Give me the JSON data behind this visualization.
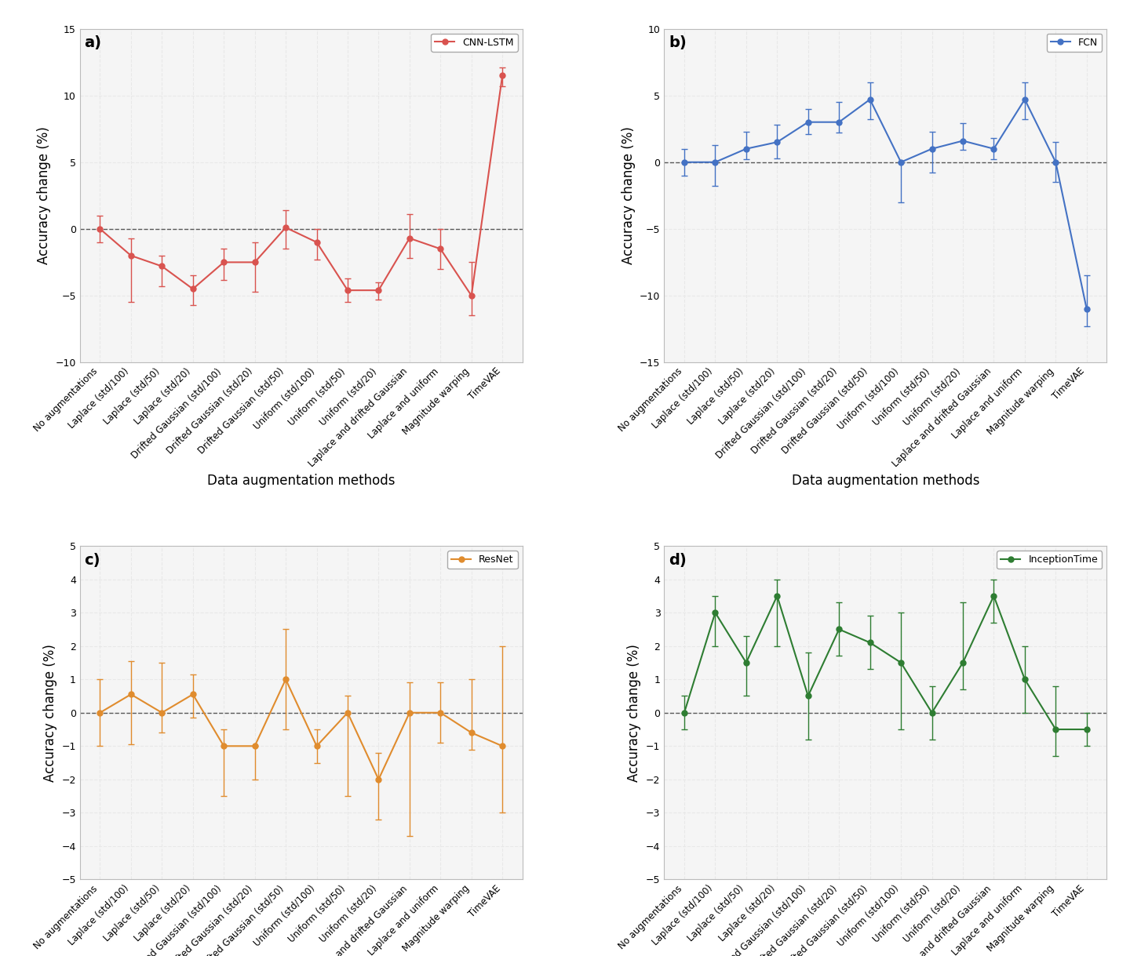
{
  "x_labels": [
    "No augmentations",
    "Laplace (std/100)",
    "Laplace (std/50)",
    "Laplace (std/20)",
    "Drifted Gaussian (std/100)",
    "Drifted Gaussian (std/20)",
    "Drifted Gaussian (std/50)",
    "Uniform (std/100)",
    "Uniform (std/50)",
    "Uniform (std/20)",
    "Laplace and drifted Gaussian",
    "Laplace and uniform",
    "Magnitude warping",
    "TimeVAE"
  ],
  "panels": [
    {
      "label": "a)",
      "model": "CNN-LSTM",
      "color": "#d9534f",
      "ylim": [
        -10,
        15
      ],
      "yticks": [
        -10,
        -5,
        0,
        5,
        10,
        15
      ],
      "values": [
        0.0,
        -2.0,
        -2.8,
        -4.5,
        -2.5,
        -2.5,
        0.1,
        -1.0,
        -4.6,
        -4.6,
        -0.7,
        -1.5,
        -5.0,
        11.5
      ],
      "yerr_low": [
        1.0,
        3.5,
        1.5,
        1.2,
        1.3,
        2.2,
        1.6,
        1.3,
        0.9,
        0.7,
        1.5,
        1.5,
        1.5,
        0.8
      ],
      "yerr_high": [
        1.0,
        1.3,
        0.8,
        1.0,
        1.0,
        1.5,
        1.3,
        1.0,
        0.9,
        0.6,
        1.8,
        1.5,
        2.5,
        0.6
      ]
    },
    {
      "label": "b)",
      "model": "FCN",
      "color": "#4472c4",
      "ylim": [
        -15,
        10
      ],
      "yticks": [
        -15,
        -10,
        -5,
        0,
        5,
        10
      ],
      "values": [
        0.0,
        0.0,
        1.0,
        1.5,
        3.0,
        3.0,
        4.7,
        0.0,
        1.0,
        1.6,
        1.0,
        4.7,
        0.0,
        -11.0
      ],
      "yerr_low": [
        1.0,
        1.8,
        0.8,
        1.2,
        0.9,
        0.8,
        1.5,
        3.0,
        1.8,
        0.7,
        0.8,
        1.5,
        1.5,
        1.3
      ],
      "yerr_high": [
        1.0,
        1.3,
        1.3,
        1.3,
        1.0,
        1.5,
        1.3,
        0.0,
        1.3,
        1.3,
        0.8,
        1.3,
        1.5,
        2.5
      ]
    },
    {
      "label": "c)",
      "model": "ResNet",
      "color": "#e08c2e",
      "ylim": [
        -5,
        5
      ],
      "yticks": [
        -5,
        -4,
        -3,
        -2,
        -1,
        0,
        1,
        2,
        3,
        4,
        5
      ],
      "values": [
        0.0,
        0.55,
        0.0,
        0.55,
        -1.0,
        -1.0,
        1.0,
        -1.0,
        0.0,
        -2.0,
        0.0,
        0.0,
        -0.6,
        -1.0
      ],
      "yerr_low": [
        1.0,
        1.5,
        0.6,
        0.7,
        1.5,
        1.0,
        1.5,
        0.5,
        2.5,
        1.2,
        3.7,
        0.9,
        0.5,
        2.0
      ],
      "yerr_high": [
        1.0,
        1.0,
        1.5,
        0.6,
        0.5,
        0.0,
        1.5,
        0.5,
        0.5,
        0.8,
        0.9,
        0.9,
        1.6,
        3.0
      ]
    },
    {
      "label": "d)",
      "model": "InceptionTime",
      "color": "#2e7d32",
      "ylim": [
        -5,
        5
      ],
      "yticks": [
        -5,
        -4,
        -3,
        -2,
        -1,
        0,
        1,
        2,
        3,
        4,
        5
      ],
      "values": [
        0.0,
        3.0,
        1.5,
        3.5,
        0.5,
        2.5,
        2.1,
        1.5,
        0.0,
        1.5,
        3.5,
        1.0,
        -0.5,
        -0.5
      ],
      "yerr_low": [
        0.5,
        1.0,
        1.0,
        1.5,
        1.3,
        0.8,
        0.8,
        2.0,
        0.8,
        0.8,
        0.8,
        1.0,
        0.8,
        0.5
      ],
      "yerr_high": [
        0.5,
        0.5,
        0.8,
        0.5,
        1.3,
        0.8,
        0.8,
        1.5,
        0.8,
        1.8,
        0.5,
        1.0,
        1.3,
        0.5
      ]
    }
  ],
  "background_color": "#ffffff",
  "plot_bg_color": "#f5f5f5",
  "grid_color": "#e8e8e8",
  "xlabel": "Data augmentation methods",
  "ylabel": "Accuracy change (%)",
  "xlabel_fontsize": 12,
  "ylabel_fontsize": 12,
  "tick_fontsize": 8.5,
  "label_fontsize": 14,
  "legend_fontsize": 9,
  "marker_size": 5,
  "line_width": 1.5,
  "cap_size": 3
}
